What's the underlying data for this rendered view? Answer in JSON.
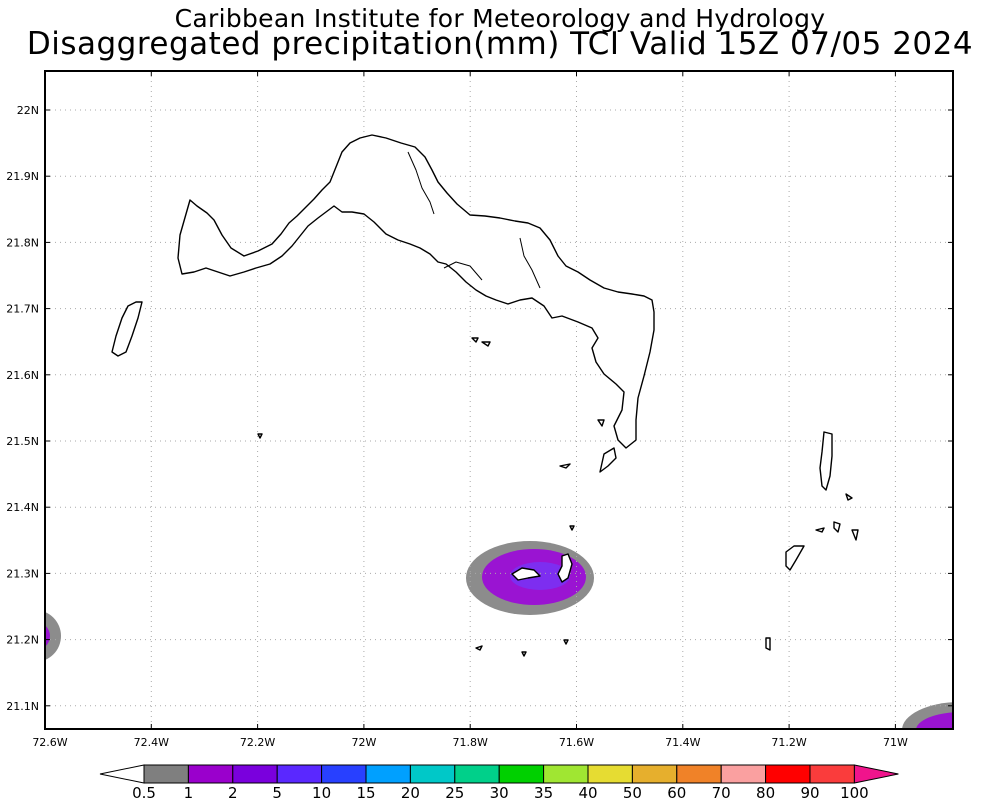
{
  "header": {
    "line1": "Caribbean Institute for Meteorology and Hydrology",
    "line2": "Disaggregated precipitation(mm) TCI Valid 15Z 07/05 2024"
  },
  "axes": {
    "lon_ticks": [
      "72.6W",
      "72.4W",
      "72.2W",
      "72W",
      "71.8W",
      "71.6W",
      "71.4W",
      "71.2W",
      "71W"
    ],
    "lat_ticks": [
      "22N",
      "21.9N",
      "21.8N",
      "21.7N",
      "21.6N",
      "21.5N",
      "21.4N",
      "21.3N",
      "21.2N",
      "21.1N"
    ]
  },
  "colorbar": {
    "labels": [
      "0.5",
      "1",
      "2",
      "5",
      "10",
      "15",
      "20",
      "25",
      "30",
      "35",
      "40",
      "50",
      "60",
      "70",
      "80",
      "90",
      "100"
    ],
    "colors": [
      "#7f7f7f",
      "#9a00cc",
      "#7a00dd",
      "#5a28ff",
      "#2840ff",
      "#00a0ff",
      "#00c8c8",
      "#00d08a",
      "#00d000",
      "#a0e632",
      "#e6dc32",
      "#e6af2d",
      "#f08228",
      "#faa0a0",
      "#ff0000",
      "#fa3c3c"
    ],
    "low_color": "#ffffff",
    "high_color": "#f0148c"
  },
  "map": {
    "colors": {
      "coast": "#000000",
      "grid": "#aaaaaa",
      "rain_low": "#8c8c8c",
      "rain_mid": "#9a14d2",
      "rain_core": "#7d2ef0"
    }
  }
}
